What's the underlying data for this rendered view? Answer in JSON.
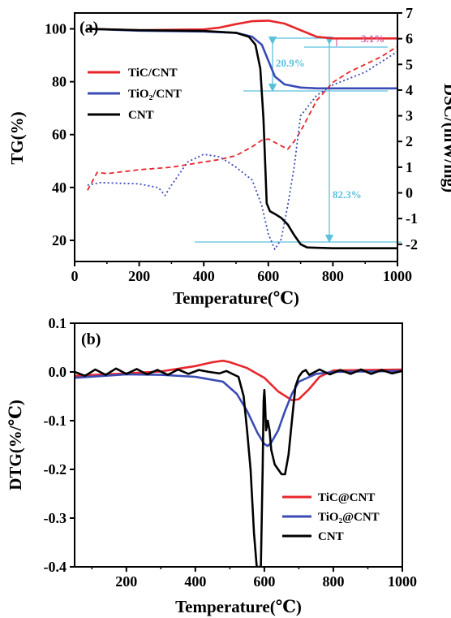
{
  "chart_data": [
    {
      "panel_label": "(a)",
      "type": "line",
      "xlabel": "Temperature(℃)",
      "ylabel": "TG(%)",
      "ylabel_right": "DSC/(mW/mg)",
      "xlim": [
        0,
        1000
      ],
      "ylim": [
        12,
        106
      ],
      "ylim_right": [
        -2.67,
        7
      ],
      "x_ticks": [
        "0",
        "200",
        "400",
        "600",
        "800",
        "1000"
      ],
      "y_ticks": [
        "20",
        "40",
        "60",
        "80",
        "100"
      ],
      "y_ticks_right": [
        "-2",
        "-1",
        "0",
        "1",
        "2",
        "3",
        "4",
        "5",
        "6",
        "7"
      ],
      "legend": [
        "TiC/CNT",
        "TiO₂/CNT",
        "CNT"
      ],
      "annotations": [
        "3.1%",
        "20.9%",
        "82.3%"
      ],
      "series": [
        {
          "name": "TiC/CNT",
          "axis": "TG",
          "style": "solid",
          "color": "#e8262a",
          "x": [
            40,
            200,
            400,
            450,
            500,
            550,
            600,
            650,
            700,
            750,
            800,
            900,
            1000
          ],
          "y": [
            100,
            99.5,
            99.8,
            100.5,
            101.8,
            102.9,
            103.1,
            102,
            99.5,
            97,
            96.4,
            96.4,
            96.4
          ]
        },
        {
          "name": "TiO₂/CNT",
          "axis": "TG",
          "style": "solid",
          "color": "#3a4bb5",
          "x": [
            40,
            200,
            400,
            500,
            550,
            580,
            600,
            620,
            650,
            700,
            750,
            800,
            1000
          ],
          "y": [
            100,
            99.3,
            99,
            98.5,
            97,
            94,
            88,
            82,
            79,
            77.8,
            77.5,
            77.5,
            77.5
          ]
        },
        {
          "name": "CNT",
          "axis": "TG",
          "style": "solid",
          "color": "#000000",
          "x": [
            40,
            200,
            400,
            500,
            540,
            560,
            575,
            585,
            595,
            605,
            620,
            640,
            660,
            680,
            700,
            720,
            800,
            900,
            1000
          ],
          "y": [
            100,
            99.5,
            99.2,
            98.5,
            97,
            94,
            85,
            66,
            34,
            31,
            30,
            28.5,
            26,
            22,
            18.5,
            17.3,
            17,
            17,
            17
          ]
        },
        {
          "name": "TiC/CNT DSC",
          "axis": "DSC",
          "style": "dashed",
          "color": "#e8262a",
          "x": [
            40,
            70,
            100,
            200,
            300,
            400,
            450,
            500,
            550,
            580,
            600,
            630,
            660,
            680,
            700,
            750,
            800,
            850,
            900,
            950,
            1000
          ],
          "y": [
            0.1,
            0.8,
            0.75,
            0.9,
            1.0,
            1.2,
            1.3,
            1.45,
            1.8,
            2.05,
            2.1,
            1.9,
            1.7,
            2.0,
            2.4,
            3.6,
            4.3,
            4.7,
            5.0,
            5.3,
            5.7
          ]
        },
        {
          "name": "TiO₂/CNT DSC",
          "axis": "DSC",
          "style": "dotted",
          "color": "#3a4bb5",
          "x": [
            40,
            80,
            200,
            260,
            280,
            300,
            350,
            400,
            450,
            500,
            550,
            580,
            600,
            620,
            640,
            660,
            680,
            700,
            750,
            800,
            900,
            1000
          ],
          "y": [
            0.3,
            0.4,
            0.35,
            0.2,
            -0.1,
            0.3,
            1.2,
            1.5,
            1.4,
            1.0,
            0.5,
            -0.5,
            -1.6,
            -2.2,
            -1.8,
            -0.5,
            1.0,
            3.0,
            3.8,
            4.2,
            4.7,
            5.5
          ]
        }
      ]
    },
    {
      "panel_label": "(b)",
      "type": "line",
      "xlabel": "Temperature(℃)",
      "ylabel": "DTG(%/℃)",
      "xlim": [
        50,
        1000
      ],
      "ylim": [
        -0.4,
        0.1
      ],
      "x_ticks": [
        "200",
        "400",
        "600",
        "800",
        "1000"
      ],
      "y_ticks": [
        "0.1",
        "0.0",
        "-0.1",
        "-0.2",
        "-0.3",
        "-0.4"
      ],
      "legend": [
        "TiC@CNT",
        "TiO₂@CNT",
        "CNT"
      ],
      "series": [
        {
          "name": "TiC@CNT",
          "color": "#e8262a",
          "x": [
            50,
            200,
            300,
            400,
            450,
            480,
            500,
            550,
            600,
            640,
            680,
            700,
            730,
            760,
            800,
            1000
          ],
          "y": [
            -0.008,
            -0.003,
            0.001,
            0.012,
            0.02,
            0.023,
            0.02,
            0.008,
            -0.012,
            -0.04,
            -0.058,
            -0.056,
            -0.035,
            -0.01,
            0.003,
            0.005
          ]
        },
        {
          "name": "TiO₂@CNT",
          "color": "#3a4bb5",
          "x": [
            50,
            200,
            300,
            400,
            480,
            520,
            550,
            580,
            600,
            610,
            620,
            640,
            660,
            680,
            700,
            750,
            800,
            1000
          ],
          "y": [
            -0.012,
            -0.005,
            -0.006,
            -0.01,
            -0.02,
            -0.045,
            -0.08,
            -0.125,
            -0.148,
            -0.152,
            -0.145,
            -0.12,
            -0.08,
            -0.045,
            -0.02,
            -0.004,
            0.0,
            0.002
          ]
        },
        {
          "name": "CNT",
          "color": "#000000",
          "x": [
            50,
            80,
            110,
            140,
            170,
            200,
            230,
            260,
            290,
            320,
            350,
            380,
            410,
            440,
            470,
            490,
            510,
            525,
            540,
            550,
            560,
            570,
            578,
            582,
            590,
            595,
            598,
            600,
            602,
            605,
            610,
            615,
            620,
            630,
            640,
            650,
            660,
            670,
            680,
            690,
            700,
            710,
            720,
            730,
            760,
            790,
            820,
            850,
            880,
            910,
            940,
            970,
            1000
          ],
          "y": [
            0.0,
            -0.008,
            0.005,
            -0.006,
            0.007,
            -0.004,
            0.006,
            -0.005,
            0.004,
            -0.006,
            0.005,
            -0.004,
            0.004,
            0.0,
            -0.003,
            0.002,
            -0.005,
            -0.01,
            -0.05,
            -0.12,
            -0.2,
            -0.33,
            -0.4,
            -0.4,
            -0.4,
            -0.2,
            -0.06,
            -0.037,
            -0.06,
            -0.12,
            -0.1,
            -0.12,
            -0.16,
            -0.19,
            -0.2,
            -0.21,
            -0.21,
            -0.17,
            -0.1,
            -0.03,
            -0.01,
            0.0,
            0.004,
            -0.006,
            0.005,
            -0.005,
            0.004,
            -0.004,
            0.005,
            -0.004,
            0.004,
            -0.003,
            0.002
          ]
        }
      ]
    }
  ]
}
